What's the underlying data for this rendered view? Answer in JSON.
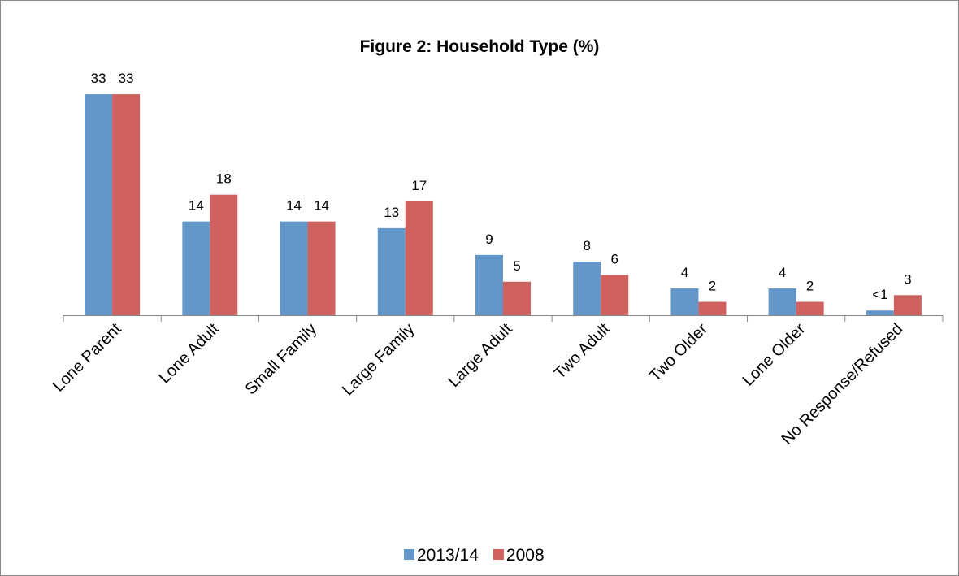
{
  "chart_data": {
    "type": "bar",
    "title": "Figure 2: Household Type (%)",
    "categories": [
      "Lone Parent",
      "Lone Adult",
      "Small Family",
      "Large Family",
      "Large Adult",
      "Two Adult",
      "Two Older",
      "Lone Older",
      "No Response/Refused"
    ],
    "series": [
      {
        "name": "2013/14",
        "color": "#6497c9",
        "values": [
          33,
          14,
          14,
          13,
          9,
          8,
          4,
          4,
          0.7
        ],
        "value_labels": [
          "33",
          "14",
          "14",
          "13",
          "9",
          "8",
          "4",
          "4",
          "<1"
        ]
      },
      {
        "name": "2008",
        "color": "#cf625f",
        "values": [
          33,
          18,
          14,
          17,
          5,
          6,
          2,
          2,
          3
        ]
      }
    ],
    "legend": "bottom"
  }
}
